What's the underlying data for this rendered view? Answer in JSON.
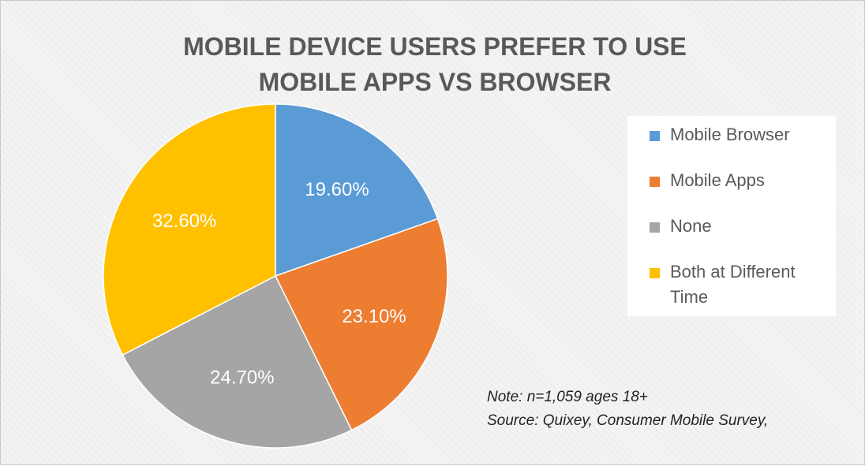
{
  "chart_data": {
    "type": "pie",
    "title": [
      "MOBILE DEVICE USERS PREFER TO USE",
      "MOBILE APPS VS BROWSER"
    ],
    "slices": [
      {
        "name": "Mobile Browser",
        "value": 19.6,
        "label": "19.60%",
        "color": "#5b9bd5"
      },
      {
        "name": "Mobile Apps",
        "value": 23.1,
        "label": "23.10%",
        "color": "#ed7d31"
      },
      {
        "name": "None",
        "value": 24.7,
        "label": "24.70%",
        "color": "#a5a5a5"
      },
      {
        "name": "Both at Different Time",
        "value": 32.6,
        "label": "32.60%",
        "color": "#ffc000"
      }
    ],
    "legend_position": "right",
    "notes": [
      "Note: n=1,059 ages 18+",
      "Source: Quixey, Consumer Mobile Survey,"
    ]
  }
}
